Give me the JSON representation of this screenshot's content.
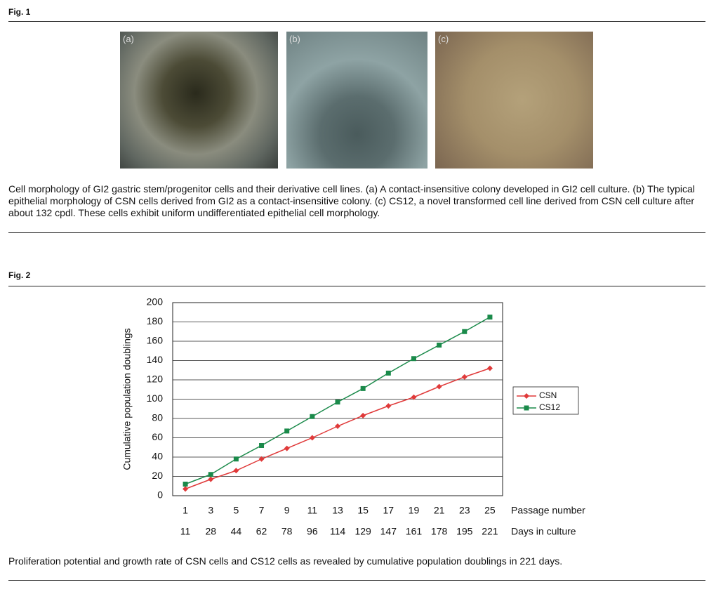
{
  "fig1": {
    "label": "Fig. 1",
    "panels": [
      "(a)",
      "(b)",
      "(c)"
    ],
    "caption": "Cell morphology of GI2 gastric stem/progenitor cells and their derivative cell lines. (a) A contact-insensitive colony developed in GI2 cell culture. (b) The typical epithelial morphology of CSN cells derived from GI2 as a contact-insensitive colony. (c) CS12, a novel transformed cell line derived from CSN cell culture after about 132 cpdl. These cells exhibit uniform undifferentiated epithelial cell morphology."
  },
  "fig2": {
    "label": "Fig. 2",
    "caption": "Proliferation potential and growth rate of CSN cells and CS12 cells as revealed by cumulative population doublings in 221 days."
  },
  "chart_data": {
    "type": "line",
    "ylabel": "Cumulative population doublings",
    "xlabel": "Passage number",
    "xlabel2": "Days in culture",
    "categories": [
      "1",
      "3",
      "5",
      "7",
      "9",
      "11",
      "13",
      "15",
      "17",
      "19",
      "21",
      "23",
      "25"
    ],
    "categories2": [
      "11",
      "28",
      "44",
      "62",
      "78",
      "96",
      "114",
      "129",
      "147",
      "161",
      "178",
      "195",
      "221"
    ],
    "series": [
      {
        "name": "CSN",
        "color": "#e03a3a",
        "marker": "diamond",
        "values": [
          7,
          17,
          26,
          38,
          49,
          60,
          72,
          83,
          93,
          102,
          113,
          123,
          132
        ]
      },
      {
        "name": "CS12",
        "color": "#1a8a4a",
        "marker": "square",
        "values": [
          12,
          22,
          38,
          52,
          67,
          82,
          97,
          111,
          127,
          142,
          156,
          170,
          185
        ]
      }
    ],
    "ylim": [
      0,
      200
    ],
    "yticks": [
      0,
      20,
      40,
      60,
      80,
      100,
      120,
      140,
      160,
      180,
      200
    ],
    "grid": true,
    "legend": "right"
  }
}
